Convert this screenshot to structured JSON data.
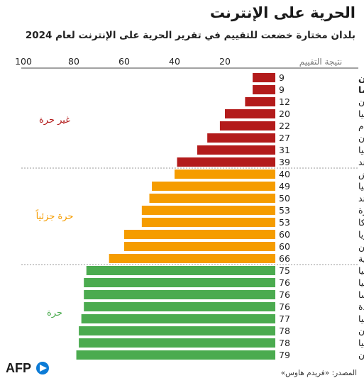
{
  "title": "الحرية على الإنترنت",
  "subtitle": "بلدان مختارة خضعت للتقييم في تقرير الحرية على الإنترنت لعام 2024",
  "source": "المصدر: «فريدم هاوس»",
  "logo_text": "AFP",
  "colors": {
    "not_free": "#b31b1b",
    "partly_free": "#f59c00",
    "free": "#4bab4f",
    "accent": "#0c7bd6"
  },
  "chart_data": {
    "type": "bar",
    "orientation": "horizontal",
    "axis_title": "نتيجة التقييم",
    "ticks": [
      20,
      40,
      60,
      80,
      100
    ],
    "xlim": [
      0,
      100
    ],
    "categories": [
      "الصين",
      "بورما",
      "إيران",
      "روسيا",
      "فيتنام",
      "باكستان",
      "تركيا",
      "تايلاند",
      "بنغلاديش",
      "إندونيسيا",
      "الهند",
      "سنغافورة",
      "سريلانكا",
      "ماليزيا",
      "الفيليبين",
      "كوريا الجنوبية",
      "إيطاليا",
      "أستراليا",
      "فرنسا",
      "الولايات المتحدة",
      "ألمانيا",
      "اليابان",
      "بريطانيا",
      "تايوان"
    ],
    "values": [
      9,
      9,
      12,
      20,
      22,
      27,
      31,
      39,
      40,
      49,
      50,
      53,
      53,
      60,
      60,
      66,
      75,
      76,
      76,
      76,
      77,
      78,
      78,
      79
    ],
    "bold_categories": [
      "الصين",
      "بورما"
    ],
    "groups": [
      {
        "label": "غير حرة",
        "start": 0,
        "end": 7,
        "color": "#b31b1b"
      },
      {
        "label": "حرة جزئياً",
        "start": 8,
        "end": 15,
        "color": "#f59c00"
      },
      {
        "label": "حرة",
        "start": 16,
        "end": 23,
        "color": "#4bab4f"
      }
    ]
  }
}
